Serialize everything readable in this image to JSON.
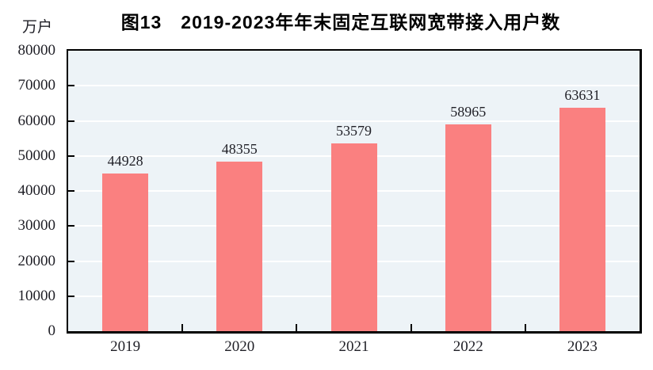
{
  "chart_data": {
    "type": "bar",
    "title": "图13　2019-2023年年末固定互联网宽带接入用户数",
    "unit_label": "万户",
    "categories": [
      "2019",
      "2020",
      "2021",
      "2022",
      "2023"
    ],
    "values": [
      44928,
      48355,
      53579,
      58965,
      63631
    ],
    "series_name": "固定互联网宽带接入用户数",
    "xlabel": "",
    "ylabel": "万户",
    "ylim": [
      0,
      80000
    ],
    "ytick_interval": 10000,
    "yticks": [
      0,
      10000,
      20000,
      30000,
      40000,
      50000,
      60000,
      70000,
      80000
    ],
    "grid": true,
    "legend_position": "none",
    "data_labels_shown": true,
    "colors": {
      "bar": "#FA8080",
      "plot_background": "#EDF3F7",
      "gridline": "#FFFFFF",
      "axis": "#000000",
      "text": "#1F1F26",
      "page_background": "#FFFFFF"
    }
  }
}
